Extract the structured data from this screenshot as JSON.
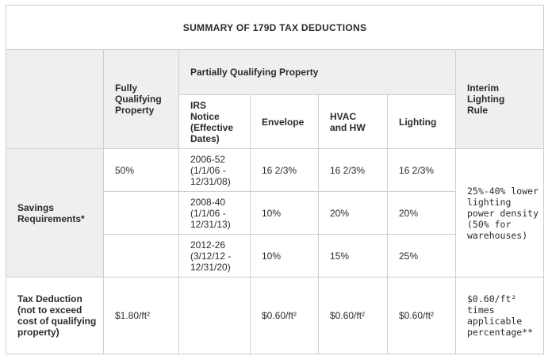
{
  "table": {
    "title": "SUMMARY OF 179D TAX DEDUCTIONS",
    "headers": {
      "fully_qualifying": "Fully Qualifying Property",
      "partially_qualifying": "Partially Qualifying Property",
      "irs_notice": "IRS Notice (Effective Dates)",
      "envelope": "Envelope",
      "hvac": "HVAC and HW",
      "lighting": "Lighting",
      "interim": "Interim Lighting Rule"
    },
    "savings": {
      "label": "Savings Requirements*",
      "rows": [
        {
          "fully": "50%",
          "notice": "2006-52 (1/1/06 - 12/31/08)",
          "envelope": "16 2/3%",
          "hvac": "16 2/3%",
          "lighting": "16 2/3%"
        },
        {
          "fully": "",
          "notice": "2008-40 (1/1/06 - 12/31/13)",
          "envelope": "10%",
          "hvac": "20%",
          "lighting": "20%"
        },
        {
          "fully": "",
          "notice": "2012-26 (3/12/12 - 12/31/20)",
          "envelope": "10%",
          "hvac": "15%",
          "lighting": "25%"
        }
      ],
      "interim": "25%-40% lower lighting power density (50% for warehouses)"
    },
    "deduction": {
      "label": "Tax Deduction (not to exceed cost of qualifying property)",
      "fully": "$1.80/ft²",
      "notice": "",
      "envelope": "$0.60/ft²",
      "hvac": "$0.60/ft²",
      "lighting": "$0.60/ft²",
      "interim": "$0.60/ft² times applicable percentage**"
    }
  }
}
